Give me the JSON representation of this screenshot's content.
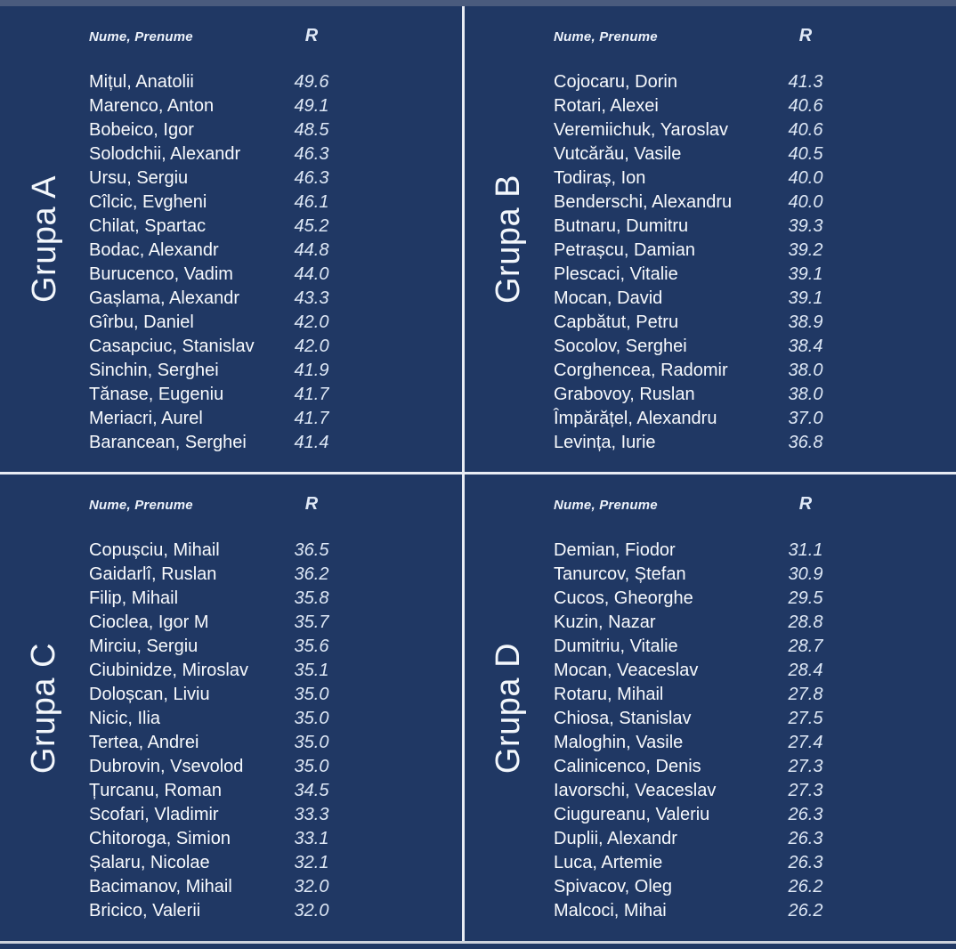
{
  "board": {
    "headers": {
      "name": "Nume, Prenume",
      "rating": "R"
    },
    "groups": [
      {
        "label": "Grupa A",
        "players": [
          {
            "name": "Mițul, Anatolii",
            "rating": "49.6"
          },
          {
            "name": "Marenco, Anton",
            "rating": "49.1"
          },
          {
            "name": "Bobeico, Igor",
            "rating": "48.5"
          },
          {
            "name": "Solodchii, Alexandr",
            "rating": "46.3"
          },
          {
            "name": "Ursu, Sergiu",
            "rating": "46.3"
          },
          {
            "name": "Cîlcic, Evgheni",
            "rating": "46.1"
          },
          {
            "name": "Chilat, Spartac",
            "rating": "45.2"
          },
          {
            "name": "Bodac, Alexandr",
            "rating": "44.8"
          },
          {
            "name": "Burucenco, Vadim",
            "rating": "44.0"
          },
          {
            "name": "Gașlama, Alexandr",
            "rating": "43.3"
          },
          {
            "name": "Gîrbu, Daniel",
            "rating": "42.0"
          },
          {
            "name": "Casapciuc, Stanislav",
            "rating": "42.0"
          },
          {
            "name": "Sinchin, Serghei",
            "rating": "41.9"
          },
          {
            "name": "Tănase, Eugeniu",
            "rating": "41.7"
          },
          {
            "name": "Meriacri, Aurel",
            "rating": "41.7"
          },
          {
            "name": "Barancean, Serghei",
            "rating": "41.4"
          }
        ]
      },
      {
        "label": "Grupa B",
        "players": [
          {
            "name": "Cojocaru, Dorin",
            "rating": "41.3"
          },
          {
            "name": "Rotari, Alexei",
            "rating": "40.6"
          },
          {
            "name": "Veremiichuk, Yaroslav",
            "rating": "40.6"
          },
          {
            "name": "Vutcărău, Vasile",
            "rating": "40.5"
          },
          {
            "name": "Todiraș, Ion",
            "rating": "40.0"
          },
          {
            "name": "Benderschi, Alexandru",
            "rating": "40.0"
          },
          {
            "name": "Butnaru, Dumitru",
            "rating": "39.3"
          },
          {
            "name": "Petrașcu, Damian",
            "rating": "39.2"
          },
          {
            "name": "Plescaci, Vitalie",
            "rating": "39.1"
          },
          {
            "name": "Mocan, David",
            "rating": "39.1"
          },
          {
            "name": "Capbătut, Petru",
            "rating": "38.9"
          },
          {
            "name": "Socolov, Serghei",
            "rating": "38.4"
          },
          {
            "name": "Corghencea, Radomir",
            "rating": "38.0"
          },
          {
            "name": "Grabovoy, Ruslan",
            "rating": "38.0"
          },
          {
            "name": "Împărățel, Alexandru",
            "rating": "37.0"
          },
          {
            "name": "Levința, Iurie",
            "rating": "36.8"
          }
        ]
      },
      {
        "label": "Grupa C",
        "players": [
          {
            "name": "Copușciu, Mihail",
            "rating": "36.5"
          },
          {
            "name": "Gaidarlî, Ruslan",
            "rating": "36.2"
          },
          {
            "name": "Filip, Mihail",
            "rating": "35.8"
          },
          {
            "name": "Cioclea, Igor M",
            "rating": "35.7"
          },
          {
            "name": "Mirciu, Sergiu",
            "rating": "35.6"
          },
          {
            "name": "Ciubinidze, Miroslav",
            "rating": "35.1"
          },
          {
            "name": "Doloșcan, Liviu",
            "rating": "35.0"
          },
          {
            "name": "Nicic, Ilia",
            "rating": "35.0"
          },
          {
            "name": "Tertea, Andrei",
            "rating": "35.0"
          },
          {
            "name": "Dubrovin, Vsevolod",
            "rating": "35.0"
          },
          {
            "name": "Țurcanu, Roman",
            "rating": "34.5"
          },
          {
            "name": "Scofari, Vladimir",
            "rating": "33.3"
          },
          {
            "name": "Chitoroga, Simion",
            "rating": "33.1"
          },
          {
            "name": "Șalaru, Nicolae",
            "rating": "32.1"
          },
          {
            "name": "Bacimanov, Mihail",
            "rating": "32.0"
          },
          {
            "name": "Bricico, Valerii",
            "rating": "32.0"
          }
        ]
      },
      {
        "label": "Grupa D",
        "players": [
          {
            "name": "Demian, Fiodor",
            "rating": "31.1"
          },
          {
            "name": "Tanurcov, Ștefan",
            "rating": "30.9"
          },
          {
            "name": "Cucos, Gheorghe",
            "rating": "29.5"
          },
          {
            "name": "Kuzin, Nazar",
            "rating": "28.8"
          },
          {
            "name": "Dumitriu, Vitalie",
            "rating": "28.7"
          },
          {
            "name": "Mocan, Veaceslav",
            "rating": "28.4"
          },
          {
            "name": "Rotaru, Mihail",
            "rating": "27.8"
          },
          {
            "name": "Chiosa, Stanislav",
            "rating": "27.5"
          },
          {
            "name": "Maloghin, Vasile",
            "rating": "27.4"
          },
          {
            "name": "Calinicenco, Denis",
            "rating": "27.3"
          },
          {
            "name": "Iavorschi, Veaceslav",
            "rating": "27.3"
          },
          {
            "name": "Ciugureanu, Valeriu",
            "rating": "26.3"
          },
          {
            "name": "Duplii, Alexandr",
            "rating": "26.3"
          },
          {
            "name": "Luca, Artemie",
            "rating": "26.3"
          },
          {
            "name": "Spivacov, Oleg",
            "rating": "26.2"
          },
          {
            "name": "Malcoci, Mihai",
            "rating": "26.2"
          }
        ]
      }
    ]
  },
  "colors": {
    "background": "#203864",
    "top_strip": "#4A5B7D",
    "divider": "#E8ECF3",
    "bottom_line": "#CDD2DB",
    "name_text": "#F8FAFD",
    "rating_text": "#DEE8F6"
  }
}
